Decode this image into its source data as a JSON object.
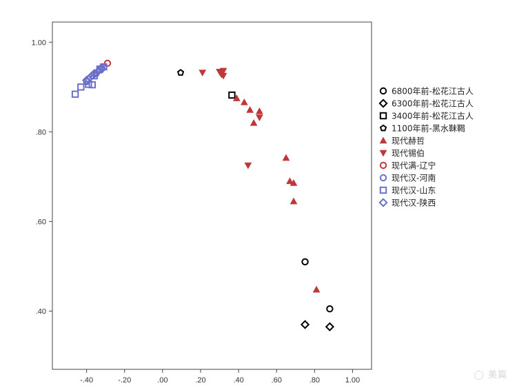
{
  "chart_data": {
    "type": "scatter",
    "title": "",
    "xlabel": "",
    "ylabel": "",
    "xlim": [
      -0.58,
      1.1
    ],
    "ylim": [
      0.27,
      1.045
    ],
    "grid": false,
    "legend_position": "right",
    "x_ticks": [
      {
        "value": -0.4,
        "label": "-.40"
      },
      {
        "value": -0.2,
        "label": "-.20"
      },
      {
        "value": 0.0,
        "label": ".00"
      },
      {
        "value": 0.2,
        "label": ".20"
      },
      {
        "value": 0.4,
        "label": ".40"
      },
      {
        "value": 0.6,
        "label": ".60"
      },
      {
        "value": 0.8,
        "label": ".80"
      },
      {
        "value": 1.0,
        "label": "1.00"
      }
    ],
    "y_ticks": [
      {
        "value": 0.4,
        "label": ".40"
      },
      {
        "value": 0.6,
        "label": ".60"
      },
      {
        "value": 0.8,
        "label": ".80"
      },
      {
        "value": 1.0,
        "label": "1.00"
      }
    ],
    "series": [
      {
        "name": "6800年前-松花江古人",
        "marker": "circle",
        "color": "#000000",
        "points": [
          [
            0.75,
            0.51
          ],
          [
            0.88,
            0.405
          ]
        ]
      },
      {
        "name": "6300年前-松花江古人",
        "marker": "diamond",
        "color": "#000000",
        "points": [
          [
            0.75,
            0.37
          ],
          [
            0.88,
            0.365
          ]
        ]
      },
      {
        "name": "3400年前-松花江古人",
        "marker": "square",
        "color": "#000000",
        "points": [
          [
            0.365,
            0.882
          ]
        ]
      },
      {
        "name": "1100年前-黑水靺鞨",
        "marker": "pentagon",
        "color": "#000000",
        "points": [
          [
            0.095,
            0.932
          ]
        ]
      },
      {
        "name": "现代赫哲",
        "marker": "triangle-up",
        "color": "#c0373a",
        "points": [
          [
            0.39,
            0.875
          ],
          [
            0.43,
            0.866
          ],
          [
            0.46,
            0.849
          ],
          [
            0.48,
            0.82
          ],
          [
            0.51,
            0.846
          ],
          [
            0.65,
            0.742
          ],
          [
            0.67,
            0.69
          ],
          [
            0.69,
            0.686
          ],
          [
            0.69,
            0.645
          ],
          [
            0.81,
            0.448
          ]
        ]
      },
      {
        "name": "现代锡伯",
        "marker": "triangle-down",
        "color": "#c0373a",
        "points": [
          [
            0.21,
            0.932
          ],
          [
            0.3,
            0.934
          ],
          [
            0.31,
            0.928
          ],
          [
            0.32,
            0.936
          ],
          [
            0.32,
            0.925
          ],
          [
            0.51,
            0.832
          ],
          [
            0.45,
            0.725
          ]
        ]
      },
      {
        "name": "现代满-辽宁",
        "marker": "circle",
        "color": "#c0373a",
        "points": [
          [
            -0.29,
            0.953
          ]
        ]
      },
      {
        "name": "现代汉-河南",
        "marker": "circle",
        "color": "#6a6fc9",
        "points": [
          [
            -0.4,
            0.912
          ],
          [
            -0.39,
            0.918
          ],
          [
            -0.37,
            0.925
          ],
          [
            -0.35,
            0.93
          ],
          [
            -0.33,
            0.938
          ],
          [
            -0.32,
            0.943
          ]
        ]
      },
      {
        "name": "现代汉-山东",
        "marker": "square",
        "color": "#6a6fc9",
        "points": [
          [
            -0.46,
            0.884
          ],
          [
            -0.43,
            0.9
          ],
          [
            -0.39,
            0.906
          ],
          [
            -0.37,
            0.905
          ],
          [
            -0.36,
            0.925
          ],
          [
            -0.33,
            0.94
          ],
          [
            -0.31,
            0.945
          ]
        ]
      },
      {
        "name": "现代汉-陕西",
        "marker": "diamond",
        "color": "#6a6fc9",
        "points": [
          [
            -0.4,
            0.915
          ],
          [
            -0.38,
            0.922
          ],
          [
            -0.36,
            0.93
          ],
          [
            -0.34,
            0.935
          ],
          [
            -0.32,
            0.94
          ]
        ]
      }
    ]
  },
  "watermark": "美篇"
}
